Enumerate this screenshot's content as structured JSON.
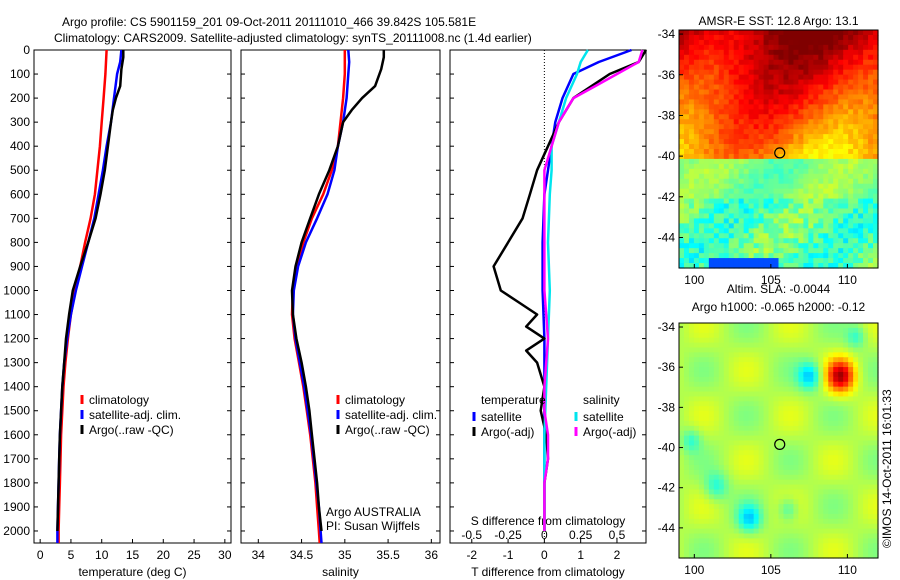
{
  "header": {
    "title_line1": "Argo profile: CS 5901159_201 09-Oct-2011 20111010_466 39.842S 105.581E",
    "title_line2": "Climatology: CARS2009. Satellite-adjusted climatology: synTS_20111008.nc (1.4d earlier)"
  },
  "colors": {
    "climatology": "#ff0000",
    "satellite": "#0000ff",
    "argo": "#000000",
    "satellite_s": "#00e5ee",
    "argo_s": "#ff00ff"
  },
  "chart_data": [
    {
      "type": "line",
      "xlabel": "temperature (deg C)",
      "ylabel": "",
      "xlim": [
        -1,
        31
      ],
      "ylim": [
        2050,
        0
      ],
      "xticks": [
        0,
        5,
        10,
        15,
        20,
        25,
        30
      ],
      "yticks": [
        0,
        100,
        200,
        300,
        400,
        500,
        600,
        700,
        800,
        900,
        1000,
        1100,
        1200,
        1300,
        1400,
        1500,
        1600,
        1700,
        1800,
        1900,
        2000
      ],
      "legend": {
        "position": "bottom-right",
        "entries": [
          "climatology",
          "satellite-adj. clim.",
          "Argo(..raw -QC)"
        ]
      },
      "series": [
        {
          "name": "climatology",
          "color": "#ff0000",
          "points": [
            [
              10.8,
              0
            ],
            [
              10.6,
              100
            ],
            [
              10.3,
              200
            ],
            [
              10.0,
              300
            ],
            [
              9.7,
              400
            ],
            [
              9.3,
              500
            ],
            [
              8.9,
              600
            ],
            [
              8.2,
              700
            ],
            [
              7.3,
              800
            ],
            [
              6.5,
              900
            ],
            [
              5.7,
              1000
            ],
            [
              5.0,
              1100
            ],
            [
              4.5,
              1200
            ],
            [
              4.1,
              1300
            ],
            [
              3.8,
              1400
            ],
            [
              3.6,
              1500
            ],
            [
              3.4,
              1600
            ],
            [
              3.3,
              1700
            ],
            [
              3.2,
              1800
            ],
            [
              3.1,
              1900
            ],
            [
              3.0,
              2000
            ],
            [
              3.0,
              2050
            ]
          ]
        },
        {
          "name": "satellite-adj. clim.",
          "color": "#0000ff",
          "points": [
            [
              13.2,
              0
            ],
            [
              13.0,
              50
            ],
            [
              12.5,
              100
            ],
            [
              12.0,
              200
            ],
            [
              11.5,
              300
            ],
            [
              10.8,
              400
            ],
            [
              10.2,
              500
            ],
            [
              9.5,
              600
            ],
            [
              8.8,
              700
            ],
            [
              7.8,
              800
            ],
            [
              6.8,
              900
            ],
            [
              5.8,
              1000
            ],
            [
              5.0,
              1100
            ],
            [
              4.4,
              1200
            ],
            [
              3.9,
              1300
            ],
            [
              3.6,
              1400
            ],
            [
              3.4,
              1500
            ],
            [
              3.2,
              1600
            ],
            [
              3.1,
              1700
            ],
            [
              3.0,
              1800
            ],
            [
              2.9,
              1900
            ],
            [
              2.8,
              2000
            ],
            [
              2.8,
              2050
            ]
          ]
        },
        {
          "name": "Argo(..raw -QC)",
          "color": "#000000",
          "points": [
            [
              13.5,
              0
            ],
            [
              13.5,
              30
            ],
            [
              13.2,
              80
            ],
            [
              13.0,
              150
            ],
            [
              12.3,
              200
            ],
            [
              11.8,
              250
            ],
            [
              11.5,
              300
            ],
            [
              11.0,
              400
            ],
            [
              10.5,
              500
            ],
            [
              9.8,
              600
            ],
            [
              9.0,
              700
            ],
            [
              7.8,
              800
            ],
            [
              6.5,
              900
            ],
            [
              5.3,
              1000
            ],
            [
              4.7,
              1100
            ],
            [
              4.2,
              1200
            ],
            [
              3.9,
              1300
            ],
            [
              3.6,
              1400
            ],
            [
              3.4,
              1500
            ],
            [
              3.2,
              1600
            ],
            [
              3.1,
              1700
            ],
            [
              3.0,
              1800
            ],
            [
              2.9,
              1900
            ],
            [
              2.8,
              2000
            ]
          ]
        }
      ]
    },
    {
      "type": "line",
      "xlabel": "salinity",
      "ylabel": "",
      "xlim": [
        33.8,
        36.1
      ],
      "ylim": [
        2050,
        0
      ],
      "xticks": [
        34,
        34.5,
        35,
        35.5,
        36
      ],
      "legend": {
        "position": "bottom-right",
        "entries": [
          "climatology",
          "satellite-adj. clim.",
          "Argo(..raw -QC)"
        ]
      },
      "series": [
        {
          "name": "climatology",
          "color": "#ff0000",
          "points": [
            [
              35.0,
              0
            ],
            [
              35.0,
              100
            ],
            [
              34.98,
              200
            ],
            [
              34.95,
              300
            ],
            [
              34.92,
              400
            ],
            [
              34.85,
              500
            ],
            [
              34.75,
              600
            ],
            [
              34.62,
              700
            ],
            [
              34.52,
              800
            ],
            [
              34.45,
              900
            ],
            [
              34.4,
              1000
            ],
            [
              34.39,
              1100
            ],
            [
              34.42,
              1200
            ],
            [
              34.47,
              1300
            ],
            [
              34.52,
              1400
            ],
            [
              34.56,
              1500
            ],
            [
              34.6,
              1600
            ],
            [
              34.63,
              1700
            ],
            [
              34.66,
              1800
            ],
            [
              34.68,
              1900
            ],
            [
              34.7,
              2000
            ],
            [
              34.71,
              2050
            ]
          ]
        },
        {
          "name": "satellite-adj. clim.",
          "color": "#0000ff",
          "points": [
            [
              35.04,
              0
            ],
            [
              35.05,
              50
            ],
            [
              35.04,
              100
            ],
            [
              35.02,
              200
            ],
            [
              34.98,
              300
            ],
            [
              34.92,
              400
            ],
            [
              34.88,
              500
            ],
            [
              34.8,
              600
            ],
            [
              34.68,
              700
            ],
            [
              34.55,
              800
            ],
            [
              34.46,
              900
            ],
            [
              34.41,
              1000
            ],
            [
              34.4,
              1100
            ],
            [
              34.43,
              1200
            ],
            [
              34.48,
              1300
            ],
            [
              34.53,
              1400
            ],
            [
              34.57,
              1500
            ],
            [
              34.61,
              1600
            ],
            [
              34.64,
              1700
            ],
            [
              34.67,
              1800
            ],
            [
              34.7,
              1900
            ],
            [
              34.72,
              2000
            ],
            [
              34.73,
              2050
            ]
          ]
        },
        {
          "name": "Argo(..raw -QC)",
          "color": "#000000",
          "points": [
            [
              35.45,
              0
            ],
            [
              35.45,
              30
            ],
            [
              35.42,
              80
            ],
            [
              35.35,
              150
            ],
            [
              35.2,
              200
            ],
            [
              35.08,
              250
            ],
            [
              34.98,
              300
            ],
            [
              34.92,
              400
            ],
            [
              34.82,
              500
            ],
            [
              34.7,
              600
            ],
            [
              34.6,
              700
            ],
            [
              34.5,
              800
            ],
            [
              34.43,
              900
            ],
            [
              34.39,
              1000
            ],
            [
              34.4,
              1100
            ],
            [
              34.44,
              1200
            ],
            [
              34.5,
              1300
            ],
            [
              34.55,
              1400
            ],
            [
              34.59,
              1500
            ],
            [
              34.62,
              1600
            ],
            [
              34.65,
              1700
            ],
            [
              34.68,
              1800
            ],
            [
              34.7,
              1900
            ],
            [
              34.73,
              2000
            ]
          ]
        }
      ]
    },
    {
      "type": "line",
      "xlabel": "T difference from climatology",
      "x2label": "S difference from climatology",
      "ylabel": "",
      "xlim": [
        -2.6,
        2.8
      ],
      "ylim": [
        2050,
        0
      ],
      "xticks": [
        -2,
        -1,
        0,
        1,
        2
      ],
      "x2ticks": [
        -0.5,
        -0.25,
        0,
        0.25,
        0.5
      ],
      "legend": {
        "position": "bottom-right",
        "groups": [
          "temperature",
          "salinity"
        ],
        "entries": [
          "satellite",
          "Argo(-adj)",
          "satellite",
          "Argo(-adj)"
        ]
      },
      "series": [
        {
          "name": "satellite",
          "color": "#0000ff",
          "points": [
            [
              2.4,
              0
            ],
            [
              1.5,
              50
            ],
            [
              0.8,
              100
            ],
            [
              0.5,
              200
            ],
            [
              0.3,
              300
            ],
            [
              0.2,
              400
            ],
            [
              0.1,
              500
            ],
            [
              0.0,
              600
            ],
            [
              -0.05,
              800
            ],
            [
              -0.05,
              1000
            ],
            [
              0.0,
              1200
            ],
            [
              0.0,
              1400
            ],
            [
              0.0,
              1600
            ],
            [
              0.0,
              1800
            ],
            [
              0.0,
              2000
            ]
          ]
        },
        {
          "name": "Argo(-adj)",
          "color": "#000000",
          "points": [
            [
              2.8,
              0
            ],
            [
              2.6,
              50
            ],
            [
              1.8,
              100
            ],
            [
              0.8,
              200
            ],
            [
              0.4,
              300
            ],
            [
              0.1,
              400
            ],
            [
              -0.2,
              500
            ],
            [
              -0.4,
              600
            ],
            [
              -0.6,
              700
            ],
            [
              -1.0,
              800
            ],
            [
              -1.4,
              900
            ],
            [
              -1.2,
              1000
            ],
            [
              -0.7,
              1050
            ],
            [
              -0.2,
              1100
            ],
            [
              -0.5,
              1150
            ],
            [
              0.0,
              1200
            ],
            [
              -0.5,
              1250
            ],
            [
              -0.2,
              1300
            ],
            [
              0.0,
              1400
            ],
            [
              -0.1,
              1500
            ],
            [
              0.05,
              1600
            ],
            [
              0.1,
              1700
            ],
            [
              0.0,
              1800
            ],
            [
              0.0,
              1900
            ],
            [
              0.0,
              2000
            ]
          ]
        },
        {
          "name": "satellite",
          "color": "#00e5ee",
          "points": [
            [
              1.2,
              0
            ],
            [
              1.0,
              50
            ],
            [
              0.9,
              100
            ],
            [
              0.6,
              200
            ],
            [
              0.4,
              300
            ],
            [
              0.2,
              400
            ],
            [
              0.2,
              500
            ],
            [
              0.15,
              600
            ],
            [
              0.1,
              800
            ],
            [
              0.15,
              1000
            ],
            [
              0.1,
              1200
            ],
            [
              0.05,
              1400
            ],
            [
              0.0,
              1600
            ],
            [
              0.0,
              1800
            ],
            [
              0.0,
              2000
            ]
          ]
        },
        {
          "name": "Argo(-adj)",
          "color": "#ff00ff",
          "points": [
            [
              2.7,
              0
            ],
            [
              2.6,
              50
            ],
            [
              2.0,
              100
            ],
            [
              1.4,
              150
            ],
            [
              0.8,
              200
            ],
            [
              0.4,
              300
            ],
            [
              0.2,
              400
            ],
            [
              0.0,
              500
            ],
            [
              0.0,
              600
            ],
            [
              0.0,
              800
            ],
            [
              0.0,
              1000
            ],
            [
              0.1,
              1200
            ],
            [
              0.0,
              1400
            ],
            [
              0.0,
              1500
            ],
            [
              0.1,
              1600
            ],
            [
              0.1,
              1700
            ],
            [
              0.0,
              1800
            ],
            [
              0.0,
              1900
            ],
            [
              0.0,
              2000
            ]
          ]
        }
      ]
    },
    {
      "type": "heatmap",
      "title": "AMSR-E SST: 12.8 Argo: 13.1",
      "xlim": [
        99,
        112
      ],
      "ylim": [
        -45.5,
        -33.8
      ],
      "xticks": [
        100,
        105,
        110
      ],
      "yticks": [
        -34,
        -36,
        -38,
        -40,
        -42,
        -44
      ],
      "argo_position": {
        "lon": 105.581,
        "lat": -39.842
      }
    },
    {
      "type": "heatmap",
      "title": "Altim. SLA: -0.0044",
      "subtitle": "Argo h1000: -0.065 h2000: -0.12",
      "xlim": [
        99,
        112
      ],
      "ylim": [
        -45.5,
        -33.8
      ],
      "xticks": [
        100,
        105,
        110
      ],
      "yticks": [
        -34,
        -36,
        -38,
        -40,
        -42,
        -44
      ],
      "argo_position": {
        "lon": 105.581,
        "lat": -39.842
      }
    }
  ],
  "annotations": {
    "float_owner": "Argo AUSTRALIA",
    "pi": "PI: Susan Wijffels",
    "credit": "©IMOS 14-Oct-2011 16:01:33",
    "legend_group_temperature": "temperature",
    "legend_group_salinity": "salinity"
  }
}
